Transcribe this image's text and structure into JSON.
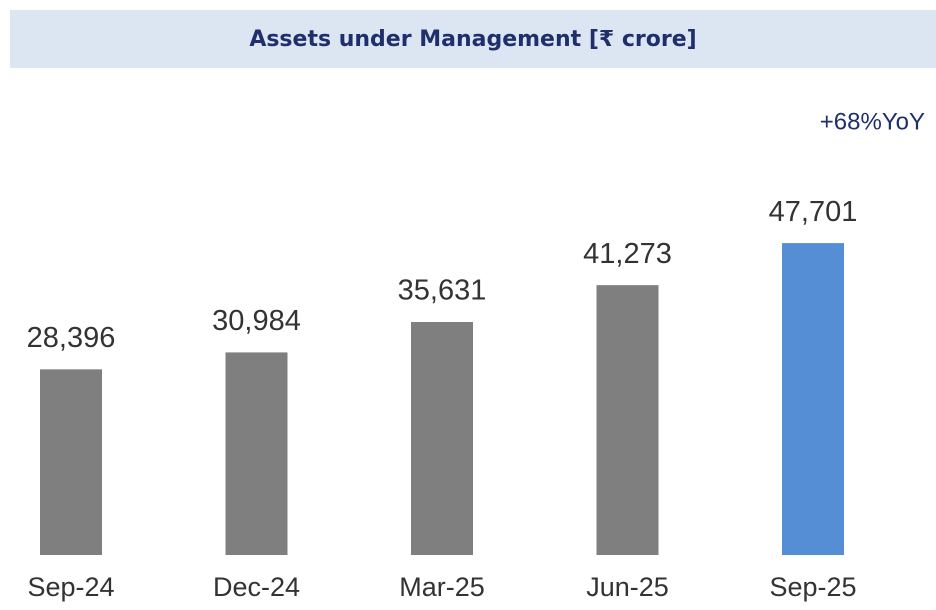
{
  "chart_data": {
    "type": "bar",
    "title": "Assets under Management [₹ crore]",
    "annotation": "+68%YoY",
    "categories": [
      "Sep-24",
      "Dec-24",
      "Mar-25",
      "Jun-25",
      "Sep-25"
    ],
    "values": [
      28396,
      30984,
      35631,
      41273,
      47701
    ],
    "value_labels": [
      "28,396",
      "30,984",
      "35,631",
      "41,273",
      "47,701"
    ],
    "colors": [
      "#7f7f7f",
      "#7f7f7f",
      "#7f7f7f",
      "#7f7f7f",
      "#558ed5"
    ],
    "ylim": [
      0,
      52000
    ]
  }
}
